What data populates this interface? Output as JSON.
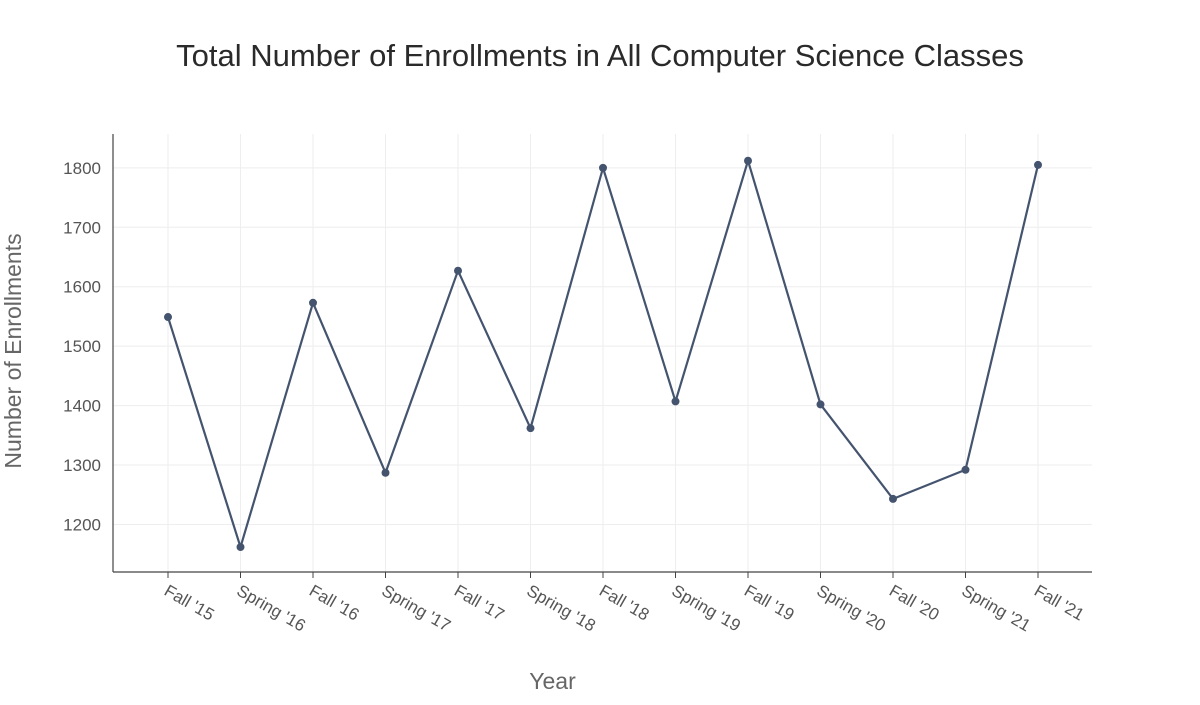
{
  "chart_data": {
    "type": "line",
    "title": "Total Number of Enrollments in All Computer Science Classes",
    "xlabel": "Year",
    "ylabel": "Number of Enrollments",
    "categories": [
      "Fall '15",
      "Spring '16",
      "Fall '16",
      "Spring '17",
      "Fall '17",
      "Spring '18",
      "Fall '18",
      "Spring '19",
      "Fall '19",
      "Spring '20",
      "Fall '20",
      "Spring '21",
      "Fall '21"
    ],
    "series": [
      {
        "values": [
          1549,
          1162,
          1573,
          1287,
          1627,
          1362,
          1800,
          1407,
          1812,
          1402,
          1243,
          1292,
          1805
        ]
      }
    ],
    "ylim": [
      1120,
      1857
    ],
    "yticks": [
      1200,
      1300,
      1400,
      1500,
      1600,
      1700,
      1800
    ],
    "grid": true,
    "legend": "none",
    "colors": {
      "line": "#44546f",
      "grid": "#eeeeee",
      "axis": "#444444"
    }
  }
}
